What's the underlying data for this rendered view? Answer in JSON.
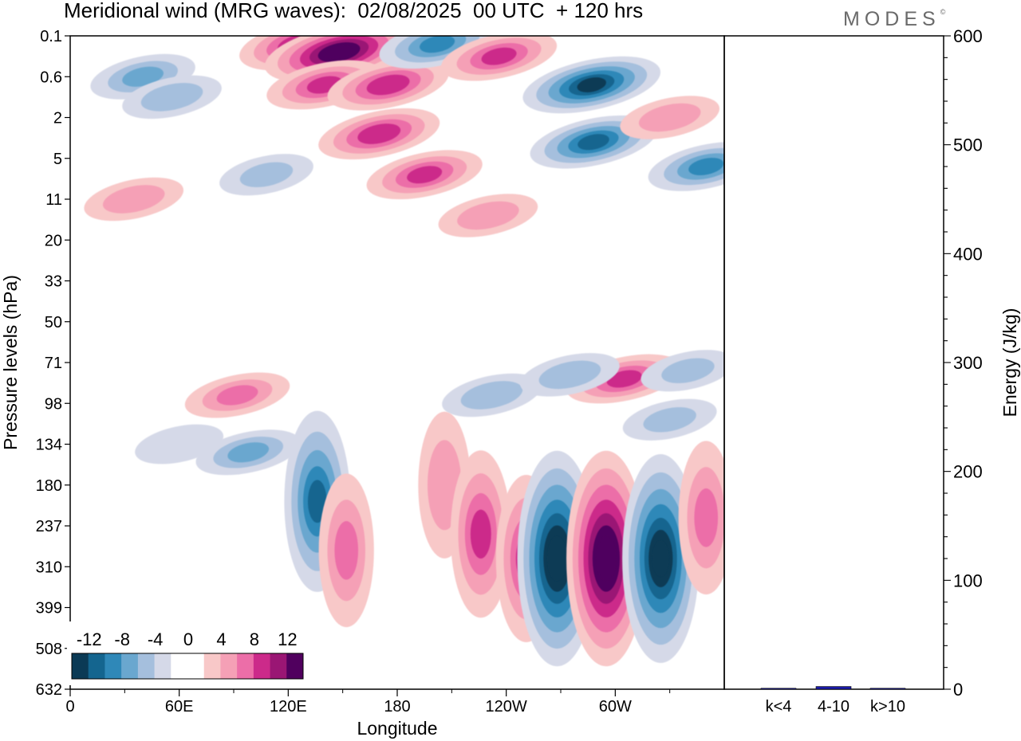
{
  "header": {
    "title": "Meridional wind (MRG waves):  02/08/2025  00 UTC  + 120 hrs",
    "brand": "MODES",
    "brand_mark": "©"
  },
  "chart_data": [
    {
      "type": "heatmap",
      "title": "Meridional wind (MRG waves)",
      "xlabel": "Longitude",
      "ylabel": "Pressure levels (hPa)",
      "x_ticks": [
        "0",
        "60E",
        "120E",
        "180",
        "120W",
        "60W"
      ],
      "x_range_deg": [
        0,
        360
      ],
      "x_tick_degrees": [
        0,
        60,
        120,
        180,
        240,
        300
      ],
      "y_levels": [
        "0.1",
        "0.6",
        "2",
        "5",
        "11",
        "20",
        "33",
        "50",
        "71",
        "98",
        "134",
        "180",
        "237",
        "310",
        "399",
        "508",
        "632"
      ],
      "y_scale": "level index (top 0.1 hPa to bottom 632 hPa)",
      "colorbar": {
        "tick_labels": [
          "-12",
          "-8",
          "-4",
          "0",
          "4",
          "8",
          "12"
        ],
        "bins": [
          "<-12",
          "-12..-10",
          "-10..-8",
          "-8..-6",
          "-6..-4",
          "-4..-2",
          "-2..0",
          "0..2",
          "2..4",
          "4..6",
          "6..8",
          "8..10",
          "10..12",
          ">12"
        ],
        "colors": [
          "#0b3a55",
          "#14658f",
          "#2f88b8",
          "#6aa7cf",
          "#a5bfdd",
          "#d5d9e8",
          "#ffffff",
          "#ffffff",
          "#f8c8c8",
          "#f5a0b6",
          "#ec6ea8",
          "#cc2a8a",
          "#9a1674",
          "#50005e"
        ],
        "orientation": "horizontal",
        "placement": "bottom-left"
      },
      "features": [
        {
          "lon": 40,
          "level": 1.0,
          "value": -6
        },
        {
          "lon": 56,
          "level": 1.5,
          "value": -5
        },
        {
          "lon": 128,
          "level": 0.2,
          "value": 10
        },
        {
          "lon": 148,
          "level": 0.4,
          "value": 14
        },
        {
          "lon": 140,
          "level": 1.2,
          "value": 8
        },
        {
          "lon": 175,
          "level": 1.2,
          "value": 9
        },
        {
          "lon": 170,
          "level": 2.4,
          "value": 9
        },
        {
          "lon": 195,
          "level": 3.4,
          "value": 8
        },
        {
          "lon": 202,
          "level": 0.2,
          "value": -8
        },
        {
          "lon": 236,
          "level": 0.5,
          "value": 8
        },
        {
          "lon": 287,
          "level": 1.2,
          "value": -12
        },
        {
          "lon": 288,
          "level": 2.6,
          "value": -10
        },
        {
          "lon": 330,
          "level": 2.0,
          "value": 5
        },
        {
          "lon": 350,
          "level": 3.2,
          "value": -8
        },
        {
          "lon": 35,
          "level": 4.0,
          "value": 5
        },
        {
          "lon": 108,
          "level": 3.4,
          "value": -4
        },
        {
          "lon": 230,
          "level": 4.4,
          "value": 5
        },
        {
          "lon": 92,
          "level": 8.8,
          "value": 6
        },
        {
          "lon": 232,
          "level": 8.8,
          "value": -5
        },
        {
          "lon": 305,
          "level": 8.4,
          "value": 8
        },
        {
          "lon": 340,
          "level": 8.2,
          "value": -4
        },
        {
          "lon": 60,
          "level": 10.0,
          "value": -3
        },
        {
          "lon": 98,
          "level": 10.2,
          "value": -6
        },
        {
          "lon": 136,
          "level": 11.4,
          "value": -10
        },
        {
          "lon": 152,
          "level": 12.6,
          "value": 6
        },
        {
          "lon": 206,
          "level": 11.0,
          "value": 5
        },
        {
          "lon": 226,
          "level": 12.2,
          "value": 8
        },
        {
          "lon": 251,
          "level": 12.8,
          "value": 8
        },
        {
          "lon": 268,
          "level": 12.8,
          "value": -15
        },
        {
          "lon": 295,
          "level": 12.8,
          "value": 15
        },
        {
          "lon": 325,
          "level": 12.8,
          "value": -14
        },
        {
          "lon": 350,
          "level": 11.8,
          "value": 6
        },
        {
          "lon": 275,
          "level": 8.3,
          "value": -5
        },
        {
          "lon": 330,
          "level": 9.4,
          "value": -4
        }
      ]
    },
    {
      "type": "bar",
      "categories": [
        "k<4",
        "4-10",
        "k>10"
      ],
      "values": [
        0,
        2.5,
        0
      ],
      "ylabel": "Energy (J/kg)",
      "ylim": [
        0,
        600
      ],
      "y_ticks": [
        "0",
        "100",
        "200",
        "300",
        "400",
        "500",
        "600"
      ],
      "bar_color": "#1a1aa8"
    }
  ]
}
